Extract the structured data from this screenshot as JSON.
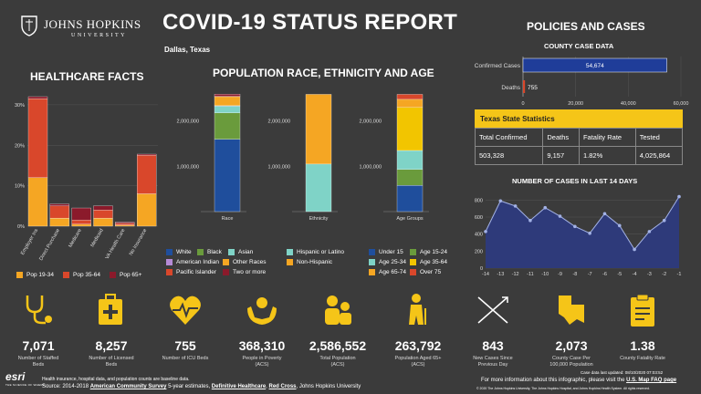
{
  "header": {
    "logo_name": "JOHNS HOPKINS",
    "logo_sub": "UNIVERSITY",
    "title": "COVID-19 STATUS REPORT",
    "location": "Dallas, Texas"
  },
  "healthcare": {
    "title": "HEALTHCARE FACTS",
    "legend": [
      "Pop 19-34",
      "Pop 35-64",
      "Pop 65+"
    ],
    "chart_data": {
      "type": "bar",
      "categories": [
        "Employer Ins",
        "Direct Purchase",
        "Medicare",
        "Medicaid",
        "VA Health Care",
        "No Insurance"
      ],
      "series": [
        {
          "name": "Pop 19-34",
          "values": [
            12,
            2,
            0.5,
            2,
            0.3,
            8
          ]
        },
        {
          "name": "Pop 35-64",
          "values": [
            19.5,
            3,
            1,
            2,
            0.4,
            9.5
          ]
        },
        {
          "name": "Pop 65+",
          "values": [
            0.5,
            0.5,
            3,
            1,
            0.3,
            0.3
          ]
        }
      ],
      "yticks": [
        "30%",
        "20%",
        "10%",
        "0%"
      ],
      "ylim": [
        0,
        32
      ]
    }
  },
  "population": {
    "title": "POPULATION RACE, ETHNICITY AND AGE",
    "race_label": "Race",
    "eth_label": "Ethnicity",
    "age_label": "Age Groups",
    "yticks": [
      "2,000,000",
      "1,000,000"
    ],
    "race_legend": [
      "White",
      "Black",
      "Asian",
      "American Indian",
      "Other Races",
      "Pacific Islander",
      "Two or more"
    ],
    "eth_legend": [
      "Hispanic or Latino",
      "Non-Hispanic"
    ],
    "age_legend": [
      "Under 15",
      "Age 15-24",
      "Age 25-34",
      "Age 35-64",
      "Age 65-74",
      "Over 75"
    ],
    "chart_data": [
      {
        "type": "bar",
        "name": "Race",
        "segments": [
          1600000,
          580000,
          150000,
          10000,
          200000,
          5000,
          50000
        ]
      },
      {
        "type": "bar",
        "name": "Ethnicity",
        "segments": [
          1050000,
          1540000
        ]
      },
      {
        "type": "bar",
        "name": "Age Groups",
        "segments": [
          580000,
          350000,
          420000,
          950000,
          180000,
          110000
        ]
      }
    ]
  },
  "policies": {
    "title": "POLICIES AND CASES",
    "county_title": "COUNTY CASE DATA",
    "confirmed_label": "Confirmed Cases",
    "confirmed_value": "54,674",
    "deaths_label": "Deaths",
    "deaths_value": "755",
    "xticks": [
      "0",
      "20,000",
      "40,000",
      "60,000"
    ],
    "chart_data": {
      "type": "bar",
      "categories": [
        "Confirmed Cases",
        "Deaths"
      ],
      "values": [
        54674,
        755
      ],
      "xlim": [
        0,
        60000
      ]
    }
  },
  "texas": {
    "title": "Texas State Statistics",
    "headers": [
      "Total Confirmed",
      "Deaths",
      "Fatality Rate",
      "Tested"
    ],
    "values": [
      "503,328",
      "9,157",
      "1.82%",
      "4,025,864"
    ]
  },
  "cases14": {
    "title": "NUMBER OF CASES IN LAST 14 DAYS",
    "chart_data": {
      "type": "area",
      "x": [
        -14,
        -13,
        -12,
        -11,
        -10,
        -9,
        -8,
        -7,
        -6,
        -5,
        -4,
        -3,
        -2,
        -1
      ],
      "y": [
        430,
        790,
        730,
        560,
        710,
        610,
        490,
        410,
        640,
        500,
        220,
        430,
        560,
        840
      ],
      "yticks": [
        "800",
        "600",
        "400",
        "200",
        "0"
      ],
      "ylim": [
        0,
        900
      ]
    }
  },
  "stats": [
    {
      "value": "7,071",
      "label": "Number of Staffed Beds",
      "icon": "stethoscope-icon"
    },
    {
      "value": "8,257",
      "label": "Number of Licensed Beds",
      "icon": "medical-kit-icon"
    },
    {
      "value": "755",
      "label": "Number of ICU Beds",
      "icon": "heartbeat-icon"
    },
    {
      "value": "368,310",
      "label": "People in Poverty (ACS)",
      "icon": "hands-icon"
    },
    {
      "value": "2,586,552",
      "label": "Total Population (ACS)",
      "icon": "people-icon"
    },
    {
      "value": "263,792",
      "label": "Population Aged 65+ (ACS)",
      "icon": "elder-icon"
    },
    {
      "value": "843",
      "label": "New Cases Since Previous Day",
      "icon": "trend-icon"
    },
    {
      "value": "2,073",
      "label": "County Case Per 100,000 Population",
      "icon": "map-icon"
    },
    {
      "value": "1.38",
      "label": "County Fatality Rate",
      "icon": "clipboard-icon"
    }
  ],
  "footer": {
    "esri": "esri",
    "esri_sub": "THE SCIENCE OF WHERE",
    "note": "Health insurance, hospital data, and population counts are baseline data.",
    "source_prefix": "Source: 2014-2018",
    "acs": "American Community Survey",
    "source_mid": "5-year estimates,",
    "dh": "Definitive Healthcare",
    "rc": "Red Cross",
    "jhu": "Johns Hopkins University",
    "updated": "Case data last updated: 08/10/2020 07:03:52",
    "more_info": "For more information about this infographic, please visit the",
    "faq": "U.S. Map FAQ page",
    "copyright": "© 2020 The Johns Hopkins University, The Johns Hopkins Hospital, and Johns Hopkins Health System. All rights reserved."
  },
  "colors": {
    "pop1934": "#f5a623",
    "pop3564": "#d9472b",
    "pop65": "#8b1a2b",
    "white": "#1f4e9c",
    "black": "#6a9b3c",
    "asian": "#7fd3c7",
    "amind": "#b58ad6",
    "other": "#f5a623",
    "pacific": "#d9472b",
    "two": "#8b1a2b",
    "hisp": "#7fd3c7",
    "nonhisp": "#f5a623",
    "u15": "#1f4e9c",
    "a1524": "#6a9b3c",
    "a2534": "#7fd3c7",
    "a3564": "#f2c500",
    "a6574": "#f5a623",
    "o75": "#d9472b",
    "accent": "#f5c518"
  }
}
